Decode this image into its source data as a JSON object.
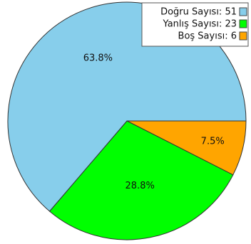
{
  "chart_data": {
    "type": "pie",
    "title": "",
    "legend_position": "top-right",
    "slices": [
      {
        "name": "Doğru Sayısı",
        "value": 51,
        "percent_label": "63.8%",
        "color": "#87ceeb"
      },
      {
        "name": "Yanlış Sayısı",
        "value": 23,
        "percent_label": "28.8%",
        "color": "#00ff00"
      },
      {
        "name": "Boş Sayısı",
        "value": 6,
        "percent_label": "7.5%",
        "color": "#ffa500"
      }
    ],
    "legend": [
      {
        "text": "Doğru Sayısı: 51",
        "color": "#87ceeb"
      },
      {
        "text": "Yanlış Sayısı: 23",
        "color": "#00ff00"
      },
      {
        "text": "Boş Sayısı: 6",
        "color": "#ffa500"
      }
    ]
  }
}
